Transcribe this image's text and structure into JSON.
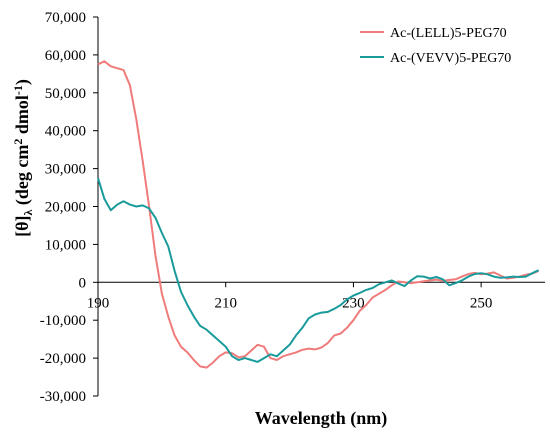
{
  "chart_data": {
    "type": "line",
    "title": "",
    "xlabel": "Wavelength  (nm)",
    "ylabel_parts": [
      "[θ]",
      "λ",
      " (deg cm",
      "2",
      " dmol",
      "-1",
      ")"
    ],
    "xlim": [
      190,
      260
    ],
    "ylim": [
      -30000,
      70000
    ],
    "x_ticks": [
      "190",
      "210",
      "230",
      "250"
    ],
    "y_ticks": [
      "70,000",
      "60,000",
      "50,000",
      "40,000",
      "30,000",
      "20,000",
      "10,000",
      "0",
      "-10,000",
      "-20,000",
      "-30,000"
    ],
    "grid": false,
    "legend": "top-right",
    "series": [
      {
        "name": "Ac-(LELL)5-PEG70",
        "color": "#f07b7b",
        "points": [
          [
            190,
            57500
          ],
          [
            191,
            58300
          ],
          [
            192,
            57000
          ],
          [
            193,
            56500
          ],
          [
            194,
            56000
          ],
          [
            195,
            52000
          ],
          [
            196,
            43000
          ],
          [
            197,
            32000
          ],
          [
            198,
            20000
          ],
          [
            199,
            7000
          ],
          [
            200,
            -3000
          ],
          [
            201,
            -9000
          ],
          [
            202,
            -14000
          ],
          [
            203,
            -17000
          ],
          [
            204,
            -18500
          ],
          [
            205,
            -20500
          ],
          [
            206,
            -22200
          ],
          [
            207,
            -22500
          ],
          [
            208,
            -21200
          ],
          [
            209,
            -19500
          ],
          [
            210,
            -18500
          ],
          [
            211,
            -18700
          ],
          [
            212,
            -19800
          ],
          [
            213,
            -19500
          ],
          [
            214,
            -18000
          ],
          [
            215,
            -16500
          ],
          [
            216,
            -17000
          ],
          [
            217,
            -20000
          ],
          [
            218,
            -20500
          ],
          [
            219,
            -19500
          ],
          [
            220,
            -19000
          ],
          [
            221,
            -18500
          ],
          [
            222,
            -17800
          ],
          [
            223,
            -17500
          ],
          [
            224,
            -17700
          ],
          [
            225,
            -17200
          ],
          [
            226,
            -16000
          ],
          [
            227,
            -14000
          ],
          [
            228,
            -13500
          ],
          [
            229,
            -12000
          ],
          [
            230,
            -10000
          ],
          [
            231,
            -7500
          ],
          [
            232,
            -6000
          ],
          [
            233,
            -4000
          ],
          [
            234,
            -3000
          ],
          [
            235,
            -2000
          ],
          [
            236,
            -800
          ],
          [
            237,
            200
          ],
          [
            238,
            0
          ],
          [
            239,
            -200
          ],
          [
            240,
            0
          ],
          [
            241,
            300
          ],
          [
            242,
            500
          ],
          [
            243,
            700
          ],
          [
            244,
            400
          ],
          [
            245,
            600
          ],
          [
            246,
            800
          ],
          [
            247,
            1500
          ],
          [
            248,
            2200
          ],
          [
            249,
            2500
          ],
          [
            250,
            2100
          ],
          [
            251,
            2300
          ],
          [
            252,
            2600
          ],
          [
            253,
            1800
          ],
          [
            254,
            1000
          ],
          [
            255,
            1200
          ],
          [
            256,
            1500
          ],
          [
            257,
            2000
          ],
          [
            258,
            2300
          ],
          [
            259,
            3000
          ]
        ]
      },
      {
        "name": "Ac-(VEVV)5-PEG70",
        "color": "#1a9b9b",
        "points": [
          [
            190,
            27500
          ],
          [
            191,
            22000
          ],
          [
            192,
            19000
          ],
          [
            193,
            20500
          ],
          [
            194,
            21400
          ],
          [
            195,
            20500
          ],
          [
            196,
            20000
          ],
          [
            197,
            20300
          ],
          [
            198,
            19500
          ],
          [
            199,
            17000
          ],
          [
            200,
            13000
          ],
          [
            201,
            9500
          ],
          [
            202,
            3000
          ],
          [
            203,
            -2500
          ],
          [
            204,
            -6000
          ],
          [
            205,
            -9000
          ],
          [
            206,
            -11500
          ],
          [
            207,
            -12500
          ],
          [
            208,
            -14000
          ],
          [
            209,
            -15500
          ],
          [
            210,
            -17000
          ],
          [
            211,
            -19500
          ],
          [
            212,
            -20500
          ],
          [
            213,
            -20000
          ],
          [
            214,
            -20500
          ],
          [
            215,
            -21000
          ],
          [
            216,
            -20000
          ],
          [
            217,
            -19000
          ],
          [
            218,
            -19500
          ],
          [
            219,
            -18000
          ],
          [
            220,
            -16500
          ],
          [
            221,
            -14000
          ],
          [
            222,
            -12000
          ],
          [
            223,
            -9500
          ],
          [
            224,
            -8500
          ],
          [
            225,
            -8000
          ],
          [
            226,
            -7800
          ],
          [
            227,
            -7000
          ],
          [
            228,
            -6000
          ],
          [
            229,
            -4500
          ],
          [
            230,
            -3500
          ],
          [
            231,
            -2800
          ],
          [
            232,
            -2000
          ],
          [
            233,
            -1500
          ],
          [
            234,
            -500
          ],
          [
            235,
            0
          ],
          [
            236,
            500
          ],
          [
            237,
            -300
          ],
          [
            238,
            -1000
          ],
          [
            239,
            500
          ],
          [
            240,
            1600
          ],
          [
            241,
            1500
          ],
          [
            242,
            1000
          ],
          [
            243,
            1400
          ],
          [
            244,
            800
          ],
          [
            245,
            -800
          ],
          [
            246,
            -200
          ],
          [
            247,
            500
          ],
          [
            248,
            1500
          ],
          [
            249,
            2200
          ],
          [
            250,
            2400
          ],
          [
            251,
            2100
          ],
          [
            252,
            1500
          ],
          [
            253,
            1200
          ],
          [
            254,
            1300
          ],
          [
            255,
            1500
          ],
          [
            256,
            1400
          ],
          [
            257,
            1500
          ],
          [
            258,
            2400
          ],
          [
            259,
            3200
          ]
        ]
      }
    ]
  }
}
